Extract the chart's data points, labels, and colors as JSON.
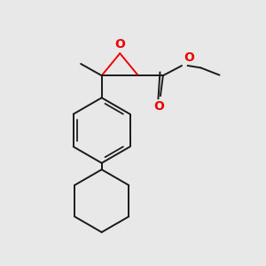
{
  "bg_color": "#e8e8e8",
  "bond_color": "#1a1a1a",
  "oxygen_color": "#ee0000",
  "line_width": 1.4,
  "figsize": [
    3.0,
    3.0
  ],
  "dpi": 100,
  "xlim": [
    0,
    10
  ],
  "ylim": [
    0,
    10
  ]
}
